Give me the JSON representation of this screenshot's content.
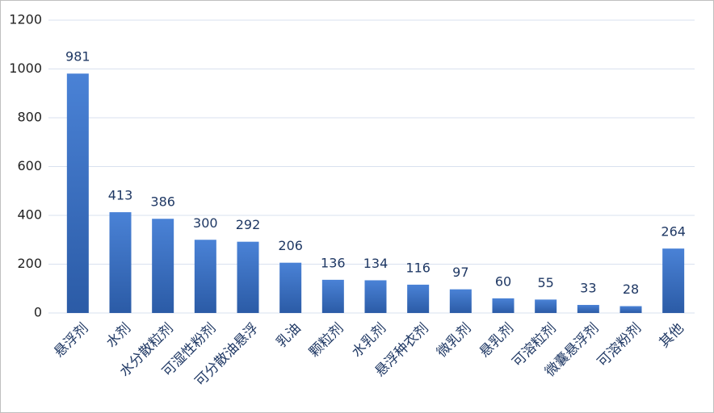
{
  "chart_data": {
    "type": "bar",
    "categories": [
      "悬浮剂",
      "水剂",
      "水分散粒剂",
      "可湿性粉剂",
      "可分散油悬浮",
      "乳油",
      "颗粒剂",
      "水乳剂",
      "悬浮种衣剂",
      "微乳剂",
      "悬乳剂",
      "可溶粒剂",
      "微囊悬浮剂",
      "可溶粉剂",
      "其他"
    ],
    "values": [
      981,
      413,
      386,
      300,
      292,
      206,
      136,
      134,
      116,
      97,
      60,
      55,
      33,
      28,
      264
    ],
    "color": "#3a6fc0",
    "ylim": [
      0,
      1200
    ],
    "yticks": [
      0,
      200,
      400,
      600,
      800,
      1000,
      1200
    ],
    "grid": true
  }
}
